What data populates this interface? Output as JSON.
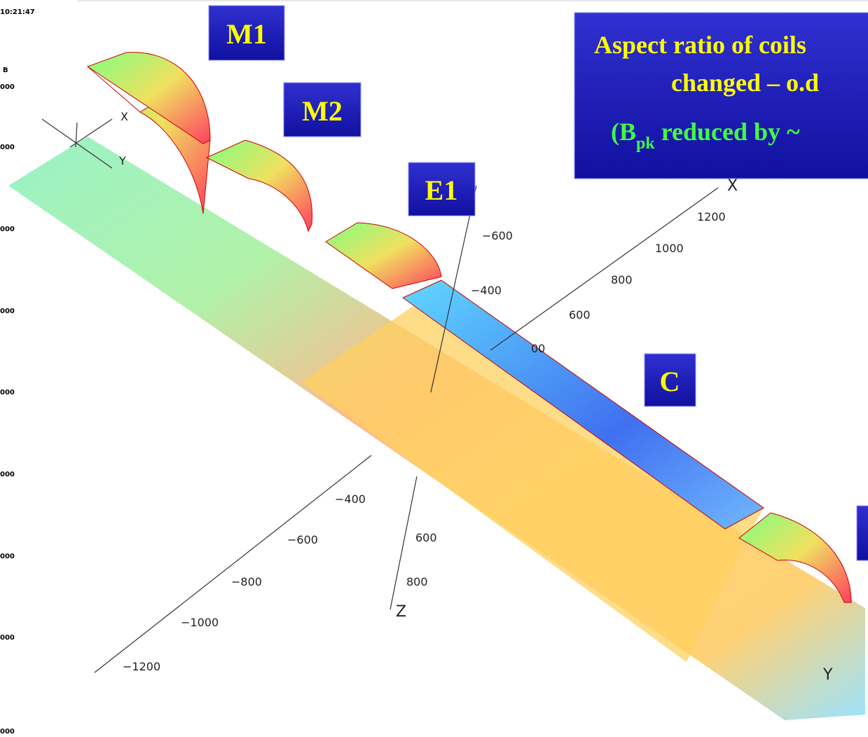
{
  "header": {
    "time": "10:21:47",
    "quantity": "B",
    "scale_labels": [
      "000",
      "000",
      "000",
      "000",
      "000",
      "000",
      "000",
      "000",
      "000"
    ]
  },
  "labels": {
    "m1": "M1",
    "m2": "M2",
    "e1": "E1",
    "c": "C"
  },
  "note": {
    "line1": "Aspect ratio of coils",
    "line2": "changed – o.d",
    "line3_prefix": "(B",
    "line3_subscript": "pk",
    "line3_suffix": " reduced by ~"
  },
  "axes": {
    "triad_x": "X",
    "triad_y": "Y",
    "x_label": "X",
    "y_label": "Y",
    "z_label": "Z",
    "x_ticks": [
      "1200",
      "1000",
      "800",
      "600",
      "00"
    ],
    "upper_ticks": [
      "−600",
      "−400"
    ],
    "y_ticks": [
      "−400",
      "−600",
      "−800",
      "−1000",
      "−1200"
    ],
    "z_ticks": [
      "600",
      "800"
    ]
  }
}
